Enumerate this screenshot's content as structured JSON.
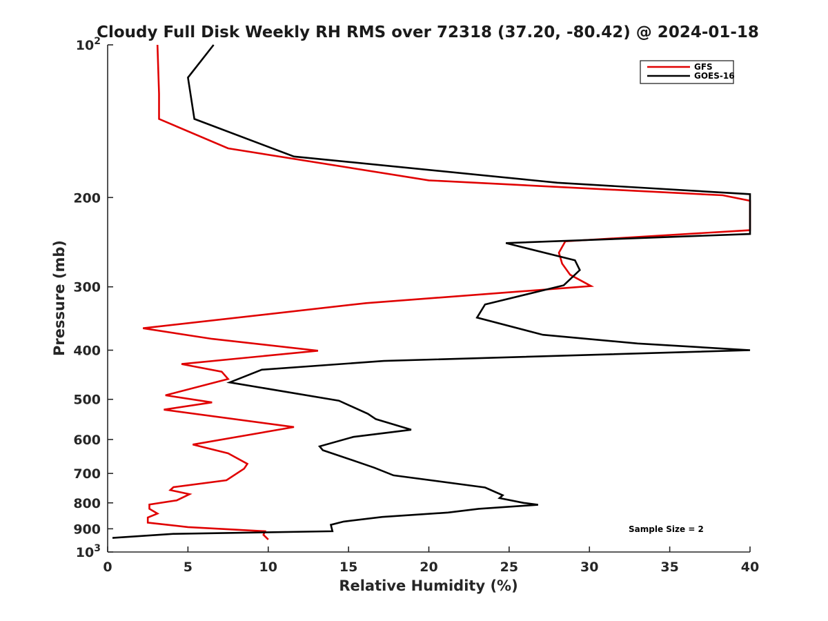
{
  "chart_data": {
    "type": "line",
    "title": "Cloudy Full Disk Weekly RH RMS over 72318 (37.20, -80.42) @ 2024-01-18",
    "xlabel": "Relative Humidity (%)",
    "ylabel": "Pressure (mb)",
    "xlim": [
      0,
      40
    ],
    "ylim": [
      100,
      1000
    ],
    "yscale": "log",
    "y_reversed": true,
    "grid": false,
    "legend_position": "top-right",
    "x_ticks": [
      0,
      5,
      10,
      15,
      20,
      25,
      30,
      35,
      40
    ],
    "x_tick_labels": [
      "0",
      "5",
      "10",
      "15",
      "20",
      "25",
      "30",
      "35",
      "40"
    ],
    "y_ticks": [
      100,
      200,
      300,
      400,
      500,
      600,
      700,
      800,
      900,
      1000
    ],
    "y_tick_labels": [
      {
        "base": "10",
        "exp": "2"
      },
      {
        "base": "200",
        "exp": ""
      },
      {
        "base": "300",
        "exp": ""
      },
      {
        "base": "400",
        "exp": ""
      },
      {
        "base": "500",
        "exp": ""
      },
      {
        "base": "600",
        "exp": ""
      },
      {
        "base": "700",
        "exp": ""
      },
      {
        "base": "800",
        "exp": ""
      },
      {
        "base": "900",
        "exp": ""
      },
      {
        "base": "10",
        "exp": "3"
      }
    ],
    "annotation": "Sample Size = 2",
    "series": [
      {
        "name": "GFS",
        "color": "#e00000",
        "points": [
          [
            3.1,
            100
          ],
          [
            3.2,
            125
          ],
          [
            3.2,
            140
          ],
          [
            7.5,
            160
          ],
          [
            20,
            185
          ],
          [
            38.3,
            198
          ],
          [
            40,
            203
          ],
          [
            40,
            232
          ],
          [
            28.5,
            244
          ],
          [
            28.1,
            257
          ],
          [
            28.3,
            270
          ],
          [
            28.8,
            284
          ],
          [
            30.1,
            299
          ],
          [
            16.1,
            323
          ],
          [
            2.2,
            362
          ],
          [
            6.5,
            380
          ],
          [
            13.1,
            401
          ],
          [
            4.6,
            426
          ],
          [
            7.1,
            441
          ],
          [
            7.5,
            456
          ],
          [
            3.6,
            491
          ],
          [
            6.5,
            507
          ],
          [
            3.5,
            524
          ],
          [
            11.6,
            567
          ],
          [
            5.3,
            614
          ],
          [
            7.5,
            639
          ],
          [
            8.7,
            670
          ],
          [
            8.5,
            685
          ],
          [
            7.4,
            722
          ],
          [
            4.1,
            745
          ],
          [
            3.9,
            755
          ],
          [
            5.1,
            769
          ],
          [
            4.3,
            791
          ],
          [
            2.6,
            806
          ],
          [
            2.6,
            822
          ],
          [
            3.1,
            840
          ],
          [
            2.5,
            855
          ],
          [
            2.5,
            875
          ],
          [
            5.0,
            893
          ],
          [
            9.8,
            910
          ],
          [
            9.7,
            925
          ],
          [
            10.0,
            945
          ]
        ]
      },
      {
        "name": "GOES-16",
        "color": "#000000",
        "points": [
          [
            6.6,
            100
          ],
          [
            5.0,
            116
          ],
          [
            5.4,
            140
          ],
          [
            11.6,
            166
          ],
          [
            28,
            187
          ],
          [
            40,
            197
          ],
          [
            40,
            236
          ],
          [
            24.8,
            246
          ],
          [
            29.1,
            266
          ],
          [
            29.4,
            278
          ],
          [
            28.4,
            298
          ],
          [
            23.5,
            325
          ],
          [
            23.0,
            345
          ],
          [
            27.1,
            373
          ],
          [
            33.0,
            388
          ],
          [
            40,
            400
          ],
          [
            17.2,
            420
          ],
          [
            9.6,
            437
          ],
          [
            7.6,
            463
          ],
          [
            14.4,
            503
          ],
          [
            16.2,
            534
          ],
          [
            16.7,
            547
          ],
          [
            18.9,
            574
          ],
          [
            15.3,
            593
          ],
          [
            13.2,
            619
          ],
          [
            13.4,
            630
          ],
          [
            14.8,
            652
          ],
          [
            16.6,
            682
          ],
          [
            17.8,
            706
          ],
          [
            23.5,
            746
          ],
          [
            24.6,
            773
          ],
          [
            24.4,
            783
          ],
          [
            25.9,
            800
          ],
          [
            26.8,
            807
          ],
          [
            23.1,
            822
          ],
          [
            21.2,
            836
          ],
          [
            17.1,
            853
          ],
          [
            14.7,
            871
          ],
          [
            13.9,
            884
          ],
          [
            14.0,
            910
          ],
          [
            4.1,
            921
          ],
          [
            0.3,
            938
          ]
        ]
      }
    ]
  }
}
